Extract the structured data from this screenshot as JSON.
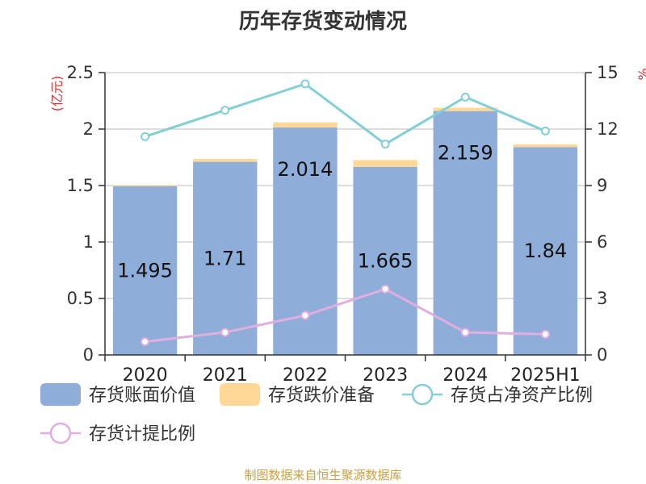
{
  "title": "历年存货变动情况",
  "source_note": "制图数据来自恒生聚源数据库",
  "colors": {
    "bar_value": "#8eadd9",
    "bar_reserve": "#ffd797",
    "line_ratio": "#82cfd5",
    "line_provision": "#e1aee0",
    "axis": "#333333",
    "grid": "#bdbdbd",
    "unit": "#e03030"
  },
  "chart_data": {
    "type": "bar",
    "title": "历年存货变动情况",
    "categories": [
      "2020",
      "2021",
      "2022",
      "2023",
      "2024",
      "2025H1"
    ],
    "left_axis": {
      "unit_label": "(亿元)",
      "ylim": [
        0,
        2.5
      ],
      "ticks": [
        "0",
        "0.5",
        "1",
        "1.5",
        "2",
        "2.5"
      ]
    },
    "right_axis": {
      "unit_label": "%",
      "ylim": [
        0,
        15
      ],
      "ticks": [
        "0",
        "3",
        "6",
        "9",
        "12",
        "15"
      ]
    },
    "grid": true,
    "legend_position": "bottom",
    "series": [
      {
        "name": "存货账面价值",
        "kind": "bar",
        "axis": "left",
        "stack": "inventory",
        "values": [
          1.495,
          1.71,
          2.014,
          1.665,
          2.159,
          1.84
        ],
        "labels": [
          "1.495",
          "1.71",
          "2.014",
          "1.665",
          "2.159",
          "1.84"
        ]
      },
      {
        "name": "存货跌价准备",
        "kind": "bar",
        "axis": "left",
        "stack": "inventory",
        "values": [
          0.01,
          0.025,
          0.045,
          0.06,
          0.03,
          0.025
        ]
      },
      {
        "name": "存货占净资产比例",
        "kind": "line",
        "axis": "right",
        "values": [
          11.6,
          13.0,
          14.4,
          11.2,
          13.7,
          11.9
        ]
      },
      {
        "name": "存货计提比例",
        "kind": "line",
        "axis": "right",
        "values": [
          0.7,
          1.2,
          2.1,
          3.5,
          1.2,
          1.1
        ]
      }
    ]
  }
}
